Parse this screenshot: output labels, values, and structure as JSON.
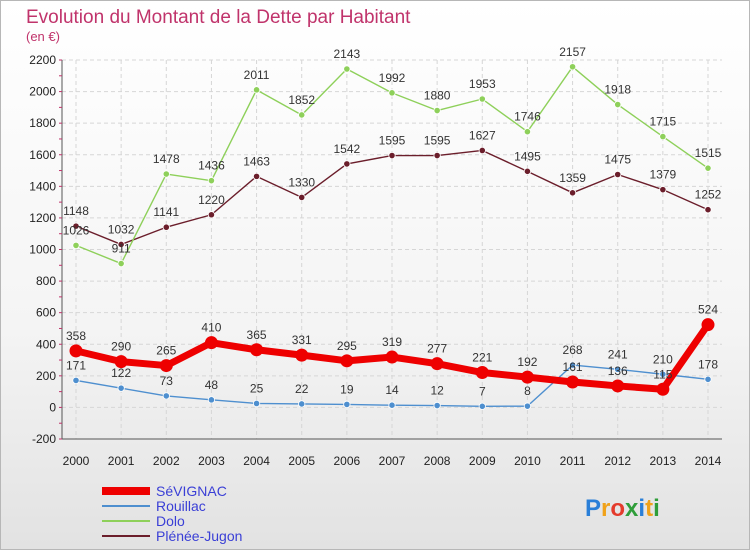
{
  "chart_data": {
    "type": "line",
    "title": "Evolution du Montant de la Dette par Habitant",
    "subtitle": "(en €)",
    "categories": [
      "2000",
      "2001",
      "2002",
      "2003",
      "2004",
      "2005",
      "2006",
      "2007",
      "2008",
      "2009",
      "2010",
      "2011",
      "2012",
      "2013",
      "2014"
    ],
    "ylim": [
      -200,
      2200
    ],
    "yticks": [
      -200,
      0,
      200,
      400,
      600,
      800,
      1000,
      1200,
      1400,
      1600,
      1800,
      2000,
      2200
    ],
    "grid": true,
    "legend_position": "bottom-left",
    "series": [
      {
        "name": "Plénée-Jugon",
        "color": "#6b1e2b",
        "width": 1.4,
        "values": [
          1148,
          1032,
          1141,
          1220,
          1463,
          1330,
          1542,
          1595,
          1595,
          1627,
          1495,
          1359,
          1475,
          1379,
          1252
        ]
      },
      {
        "name": "Dolo",
        "color": "#8ed05a",
        "width": 1.4,
        "values": [
          1026,
          911,
          1478,
          1436,
          2011,
          1852,
          2143,
          1992,
          1880,
          1953,
          1746,
          2157,
          1918,
          1715,
          1515
        ]
      },
      {
        "name": "Rouillac",
        "color": "#4e8fcf",
        "width": 1.4,
        "values": [
          171,
          122,
          73,
          48,
          25,
          22,
          19,
          14,
          12,
          7,
          8,
          268,
          241,
          210,
          178
        ]
      },
      {
        "name": "SéVIGNAC",
        "color": "#ee0000",
        "width": 7,
        "values": [
          358,
          290,
          265,
          410,
          365,
          331,
          295,
          319,
          277,
          221,
          192,
          161,
          136,
          115,
          524
        ]
      }
    ],
    "legend_order": [
      "SéVIGNAC",
      "Rouillac",
      "Dolo",
      "Plénée-Jugon"
    ]
  },
  "logo": {
    "text": "Proxiti",
    "letters": [
      "P",
      "r",
      "o",
      "x",
      "i",
      "t",
      "i"
    ],
    "colors": [
      "#2a7fd8",
      "#f0a21a",
      "#e43b2c",
      "#2f9e3a",
      "#2a7fd8",
      "#f0a21a",
      "#2f9e3a"
    ]
  }
}
